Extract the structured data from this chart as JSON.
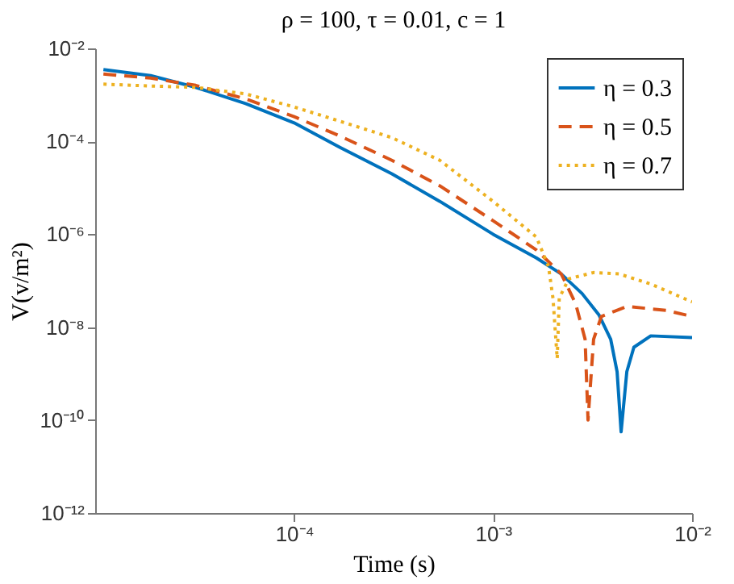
{
  "chart_data": {
    "type": "line",
    "title": "ρ = 100, τ = 0.01, c = 1",
    "xlabel": "Time (s)",
    "ylabel": "V(v/m²)",
    "log": "xy",
    "grid": false,
    "legend": "top right",
    "marker": "none",
    "xlim": [
      1e-05,
      0.01
    ],
    "xticks": [
      {
        "value": 0.0001,
        "label": "10⁻⁴"
      },
      {
        "value": 0.001,
        "label": "10⁻³"
      },
      {
        "value": 0.01,
        "label": "10⁻²"
      }
    ],
    "ylim": [
      1e-12,
      0.01
    ],
    "yticks": [
      {
        "value": 1e-12,
        "label": "10⁻¹²"
      },
      {
        "value": 1e-10,
        "label": "10⁻¹⁰"
      },
      {
        "value": 1e-08,
        "label": "10⁻⁸"
      },
      {
        "value": 1e-06,
        "label": "10⁻⁶"
      },
      {
        "value": 0.0001,
        "label": "10⁻⁴"
      },
      {
        "value": 0.01,
        "label": "10⁻²"
      }
    ],
    "series": [
      {
        "name": "η = 0.3",
        "color": "#0072bd",
        "line_style": "solid",
        "x": [
          1.1e-05,
          1.9e-05,
          3.2e-05,
          5.7e-05,
          0.0001,
          0.00017,
          0.00031,
          0.00054,
          0.001,
          0.00165,
          0.0022,
          0.0028,
          0.0034,
          0.0039,
          0.0042,
          0.0044,
          0.0047,
          0.0051,
          0.0062,
          0.01
        ],
        "values": [
          0.0035,
          0.0026,
          0.00145,
          0.00065,
          0.00025,
          7.4e-05,
          2e-05,
          5.1e-06,
          1e-06,
          3.1e-07,
          1.4e-07,
          5.3e-08,
          1.85e-08,
          5.5e-09,
          1.1e-09,
          5.6e-11,
          1.1e-09,
          3.7e-09,
          6.5e-09,
          6e-09
        ]
      },
      {
        "name": "η = 0.5",
        "color": "#d95319",
        "line_style": "dashed",
        "x": [
          1.1e-05,
          1.9e-05,
          3.2e-05,
          5.7e-05,
          0.0001,
          0.00017,
          0.00031,
          0.00054,
          0.001,
          0.00165,
          0.0022,
          0.0026,
          0.0029,
          0.003,
          0.0032,
          0.0035,
          0.0047,
          0.0074,
          0.01
        ],
        "values": [
          0.0028,
          0.0023,
          0.0016,
          0.00082,
          0.00034,
          0.00013,
          3.9e-05,
          1.1e-05,
          1.95e-06,
          4.6e-07,
          1.4e-07,
          3.2e-08,
          5.5e-09,
          1e-10,
          5.5e-09,
          1.7e-08,
          2.8e-08,
          2.3e-08,
          1.7e-08
        ]
      },
      {
        "name": "η = 0.7",
        "color": "#edb120",
        "line_style": "dotted",
        "x": [
          1.1e-05,
          1.9e-05,
          3.2e-05,
          5.7e-05,
          0.0001,
          0.00017,
          0.00031,
          0.00054,
          0.001,
          0.00165,
          0.0019,
          0.002,
          0.0021,
          0.00215,
          0.0024,
          0.0032,
          0.0043,
          0.0062,
          0.01
        ],
        "values": [
          0.0017,
          0.00155,
          0.00145,
          0.00105,
          0.00055,
          0.00027,
          0.00012,
          3.9e-05,
          5.1e-06,
          8.7e-07,
          2e-07,
          4.2e-08,
          2.1e-09,
          4.2e-08,
          1.1e-07,
          1.5e-07,
          1.4e-07,
          8.5e-08,
          3.5e-08
        ]
      }
    ]
  }
}
